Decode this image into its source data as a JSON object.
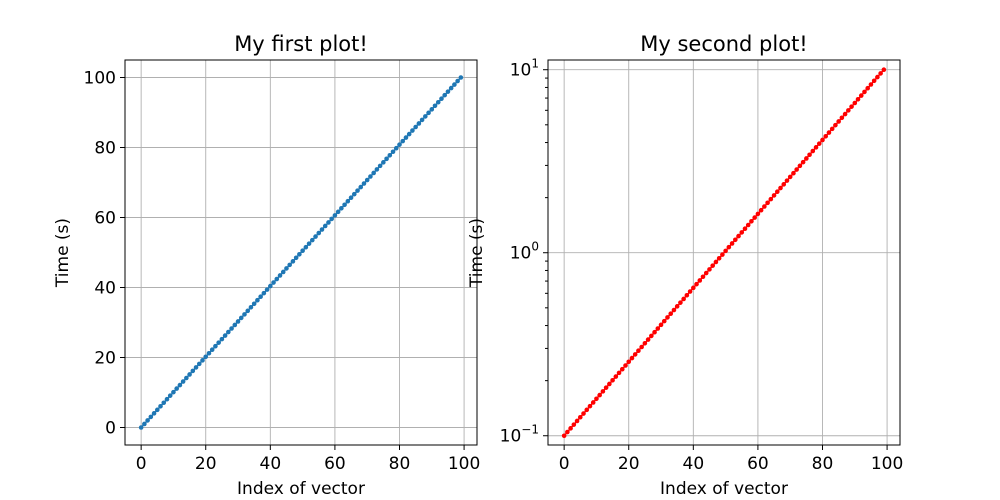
{
  "chart_data": [
    {
      "type": "line",
      "title": "My first plot!",
      "xlabel": "Index of vector",
      "ylabel": "Time (s)",
      "xlim": [
        -5,
        104
      ],
      "ylim": [
        -5,
        105
      ],
      "yscale": "linear",
      "grid": true,
      "xticks": [
        0,
        20,
        40,
        60,
        80,
        100
      ],
      "xtick_labels": [
        "0",
        "20",
        "40",
        "60",
        "80",
        "100"
      ],
      "yticks": [
        0,
        20,
        40,
        60,
        80,
        100
      ],
      "ytick_labels": [
        "0",
        "20",
        "40",
        "60",
        "80",
        "100"
      ],
      "series": [
        {
          "color": "#1f77b4",
          "marker": "point",
          "x_range": [
            0,
            99
          ],
          "y_range": [
            0,
            100
          ],
          "num_points": 100,
          "spacing": "linear"
        }
      ]
    },
    {
      "type": "line",
      "title": "My second plot!",
      "xlabel": "Index of vector",
      "ylabel": "Time (s)",
      "xlim": [
        -5,
        104
      ],
      "ylim": [
        0.089,
        11.3
      ],
      "yscale": "log",
      "grid": true,
      "xticks": [
        0,
        20,
        40,
        60,
        80,
        100
      ],
      "xtick_labels": [
        "0",
        "20",
        "40",
        "60",
        "80",
        "100"
      ],
      "yticks": [
        0.1,
        1,
        10
      ],
      "ytick_labels": [
        {
          "base": "10",
          "exp": "−1"
        },
        {
          "base": "10",
          "exp": "0"
        },
        {
          "base": "10",
          "exp": "1"
        }
      ],
      "yminorticks": [
        0.2,
        0.3,
        0.4,
        0.5,
        0.6,
        0.7,
        0.8,
        0.9,
        2,
        3,
        4,
        5,
        6,
        7,
        8,
        9
      ],
      "series": [
        {
          "color": "#ff0000",
          "marker": "point",
          "x_range": [
            0,
            99
          ],
          "y_range": [
            0.1,
            10
          ],
          "num_points": 100,
          "spacing": "log"
        }
      ]
    }
  ]
}
